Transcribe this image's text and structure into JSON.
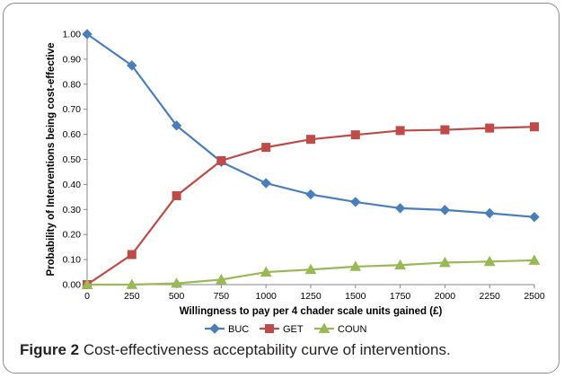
{
  "caption": {
    "figure_label": "Figure 2",
    "text": " Cost-effectiveness acceptability curve of interventions."
  },
  "chart_data": {
    "type": "line",
    "xlabel": "Willingness to pay per 4 chader scale units gained (£)",
    "ylabel": "Probability of Interventions being cost-effective",
    "x": [
      0,
      250,
      500,
      750,
      1000,
      1250,
      1500,
      1750,
      2000,
      2250,
      2500
    ],
    "x_tick_labels": [
      "0",
      "250",
      "500",
      "750",
      "1000",
      "1250",
      "1500",
      "1750",
      "2000",
      "2250",
      "2500"
    ],
    "ylim": [
      0,
      1
    ],
    "y_ticks": [
      0,
      0.1,
      0.2,
      0.3,
      0.4,
      0.5,
      0.6,
      0.7,
      0.8,
      0.9,
      1.0
    ],
    "y_tick_labels": [
      "0.00",
      "0.10",
      "0.20",
      "0.30",
      "0.40",
      "0.50",
      "0.60",
      "0.70",
      "0.80",
      "0.90",
      "1.00"
    ],
    "grid": false,
    "legend_position": "bottom",
    "series": [
      {
        "name": "BUC",
        "color": "#4a7ebb",
        "marker": "diamond",
        "values": [
          1.0,
          0.875,
          0.635,
          0.49,
          0.405,
          0.36,
          0.33,
          0.305,
          0.298,
          0.285,
          0.27
        ]
      },
      {
        "name": "GET",
        "color": "#be4b48",
        "marker": "square",
        "values": [
          0.0,
          0.12,
          0.355,
          0.495,
          0.548,
          0.58,
          0.598,
          0.615,
          0.618,
          0.625,
          0.63
        ]
      },
      {
        "name": "COUN",
        "color": "#98b954",
        "marker": "triangle",
        "values": [
          0.0,
          0.0,
          0.005,
          0.02,
          0.05,
          0.06,
          0.072,
          0.078,
          0.088,
          0.092,
          0.097
        ]
      }
    ]
  }
}
